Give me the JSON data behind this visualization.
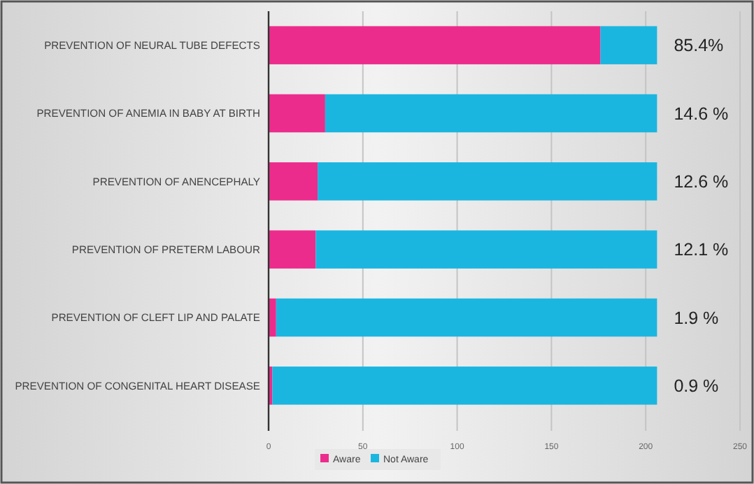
{
  "chart_data": {
    "type": "bar",
    "orientation": "horizontal",
    "stacked": true,
    "categories": [
      "PREVENTION OF NEURAL TUBE DEFECTS",
      "PREVENTION OF ANEMIA IN BABY AT BIRTH",
      "PREVENTION OF ANENCEPHALY",
      "PREVENTION OF PRETERM LABOUR",
      "PREVENTION OF CLEFT LIP AND PALATE",
      "PREVENTION OF CONGENITAL HEART DISEASE"
    ],
    "series": [
      {
        "name": "Aware",
        "color": "#ec2c8c",
        "values": [
          176,
          30,
          26,
          25,
          4,
          2
        ]
      },
      {
        "name": "Not Aware",
        "color": "#1bb6e0",
        "values": [
          30,
          176,
          180,
          181,
          202,
          204
        ]
      }
    ],
    "annotations": [
      "85.4%",
      "14.6 %",
      "12.6 %",
      "12.1 %",
      "1.9 %",
      "0.9 %"
    ],
    "xlim": [
      0,
      250
    ],
    "xticks": [
      0,
      50,
      100,
      150,
      200,
      250
    ],
    "grid": "x",
    "legend": "bottom"
  }
}
